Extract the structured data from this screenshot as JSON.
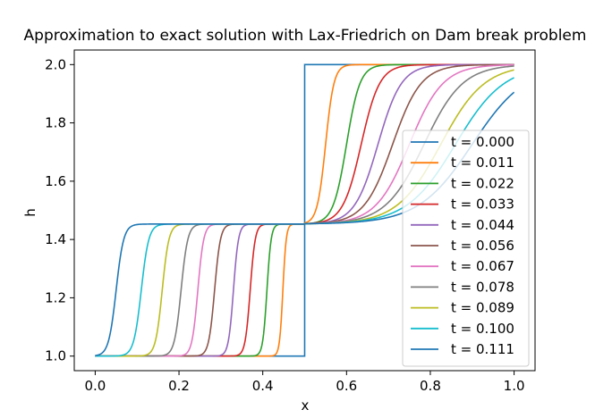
{
  "chart_data": {
    "type": "line",
    "title": "Approximation to exact solution with Lax-Friedrich on Dam break problem",
    "xlabel": "x",
    "ylabel": "h",
    "xlim": [
      -0.05,
      1.05
    ],
    "ylim": [
      0.95,
      2.05
    ],
    "xticks": [
      0.0,
      0.2,
      0.4,
      0.6,
      0.8,
      1.0
    ],
    "xtick_labels": [
      "0.0",
      "0.2",
      "0.4",
      "0.6",
      "0.8",
      "1.0"
    ],
    "yticks": [
      1.0,
      1.2,
      1.4,
      1.6,
      1.8,
      2.0
    ],
    "ytick_labels": [
      "1.0",
      "1.2",
      "1.4",
      "1.6",
      "1.8",
      "2.0"
    ],
    "grid": false,
    "legend_position": "lower-right",
    "plateau_h": 1.453,
    "series": [
      {
        "name": "t = 0.000",
        "color": "#1f77b4",
        "left_x": 0.5,
        "right_x": 0.5,
        "left_width": 0.0,
        "right_width": 0.0
      },
      {
        "name": "t = 0.011",
        "color": "#ff7f0e",
        "left_x": 0.448,
        "right_x": 0.55,
        "left_width": 0.004,
        "right_width": 0.01
      },
      {
        "name": "t = 0.022",
        "color": "#2ca02c",
        "left_x": 0.41,
        "right_x": 0.6,
        "left_width": 0.005,
        "right_width": 0.016
      },
      {
        "name": "t = 0.033",
        "color": "#d62728",
        "left_x": 0.37,
        "right_x": 0.635,
        "left_width": 0.006,
        "right_width": 0.022
      },
      {
        "name": "t = 0.044",
        "color": "#9467bd",
        "left_x": 0.33,
        "right_x": 0.675,
        "left_width": 0.006,
        "right_width": 0.028
      },
      {
        "name": "t = 0.056",
        "color": "#8c564b",
        "left_x": 0.285,
        "right_x": 0.71,
        "left_width": 0.007,
        "right_width": 0.034
      },
      {
        "name": "t = 0.067",
        "color": "#e377c2",
        "left_x": 0.245,
        "right_x": 0.75,
        "left_width": 0.007,
        "right_width": 0.04
      },
      {
        "name": "t = 0.078",
        "color": "#7f7f7f",
        "left_x": 0.205,
        "right_x": 0.785,
        "left_width": 0.008,
        "right_width": 0.046
      },
      {
        "name": "t = 0.089",
        "color": "#bcbd22",
        "left_x": 0.16,
        "right_x": 0.825,
        "left_width": 0.008,
        "right_width": 0.052
      },
      {
        "name": "t = 0.100",
        "color": "#17becf",
        "left_x": 0.11,
        "right_x": 0.86,
        "left_width": 0.009,
        "right_width": 0.058
      },
      {
        "name": "t = 0.111",
        "color": "#1f77b4",
        "left_x": 0.05,
        "right_x": 0.9,
        "left_width": 0.009,
        "right_width": 0.064
      }
    ]
  }
}
